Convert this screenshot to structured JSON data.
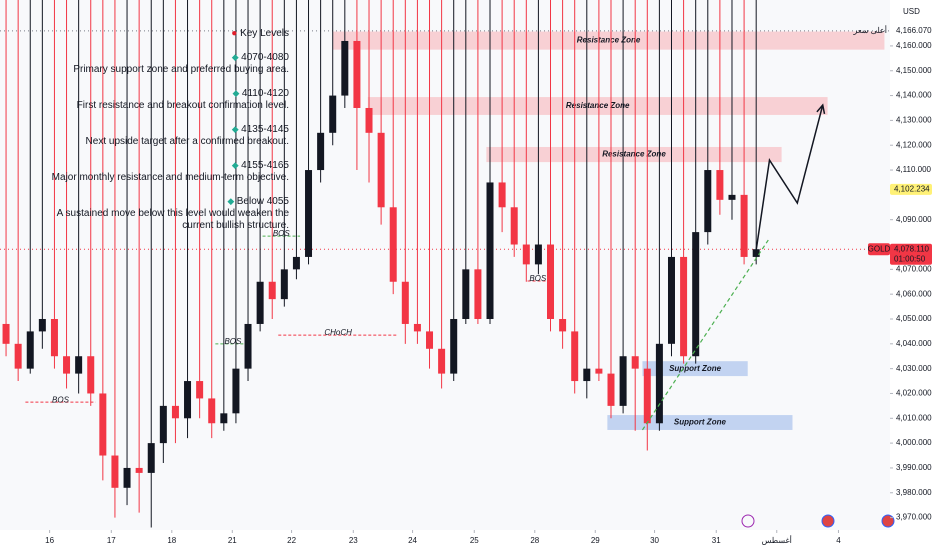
{
  "chart_data": {
    "type": "candlestick",
    "currency": "USD",
    "grid": false,
    "up_color": "#131722",
    "down_color": "#f23645",
    "xlim": [
      -0.5,
      73.06
    ],
    "ylim": [
      3965,
      4178.5
    ],
    "xticks": [
      {
        "value": 3.6,
        "label": "16"
      },
      {
        "value": 8.7,
        "label": "17"
      },
      {
        "value": 13.7,
        "label": "18"
      },
      {
        "value": 18.7,
        "label": "21"
      },
      {
        "value": 23.6,
        "label": "22"
      },
      {
        "value": 28.7,
        "label": "23"
      },
      {
        "value": 33.6,
        "label": "24"
      },
      {
        "value": 38.7,
        "label": "25"
      },
      {
        "value": 43.7,
        "label": "28"
      },
      {
        "value": 48.7,
        "label": "29"
      },
      {
        "value": 53.6,
        "label": "30"
      },
      {
        "value": 58.7,
        "label": "31"
      },
      {
        "value": 63.7,
        "label": "أغسطس"
      },
      {
        "value": 68.8,
        "label": "4"
      }
    ],
    "yticks": [
      {
        "value": 3970,
        "label": "3,970.000"
      },
      {
        "value": 3980,
        "label": "3,980.000"
      },
      {
        "value": 3990,
        "label": "3,990.000"
      },
      {
        "value": 4000,
        "label": "4,000.000"
      },
      {
        "value": 4010,
        "label": "4,010.000"
      },
      {
        "value": 4020,
        "label": "4,020.000"
      },
      {
        "value": 4030,
        "label": "4,030.000"
      },
      {
        "value": 4040,
        "label": "4,040.000"
      },
      {
        "value": 4050,
        "label": "4,050.000"
      },
      {
        "value": 4060,
        "label": "4,060.000"
      },
      {
        "value": 4070,
        "label": "4,070.000"
      },
      {
        "value": 4090,
        "label": "4,090.000"
      },
      {
        "value": 4110,
        "label": "4,110.000"
      },
      {
        "value": 4120,
        "label": "4,120.000"
      },
      {
        "value": 4130,
        "label": "4,130.000"
      },
      {
        "value": 4140,
        "label": "4,140.000"
      },
      {
        "value": 4150,
        "label": "4,150.000"
      },
      {
        "value": 4160,
        "label": "4,160.000"
      }
    ],
    "open": [
      4048,
      4040,
      4030,
      4045,
      4050,
      4035,
      4028,
      4035,
      4020,
      3995,
      3982,
      3990,
      3988,
      4000,
      4015,
      4010,
      4025,
      4018,
      4008,
      4012,
      4030,
      4048,
      4065,
      4058,
      4070,
      4075,
      4110,
      4125,
      4140,
      4162,
      4135,
      4125,
      4095,
      4065,
      4048,
      4045,
      4038,
      4028,
      4050,
      4070,
      4050,
      4105,
      4095,
      4080,
      4072,
      4080,
      4050,
      4045,
      4025,
      4030,
      4028,
      4015,
      4035,
      4030,
      4008,
      4040,
      4075,
      4035,
      4085,
      4110,
      4098,
      4100,
      4075
    ],
    "high": {
      "value": 4166.07,
      "label": "4,166.070"
    },
    "low": [
      4035,
      4025,
      4028,
      4038,
      4030,
      4022,
      4020,
      4015,
      3985,
      3970,
      3975,
      3972,
      3966,
      3992,
      4000,
      4002,
      4010,
      4002,
      4005,
      4008,
      4025,
      4045,
      4050,
      4055,
      4066,
      4072,
      4105,
      4120,
      4135,
      4110,
      4105,
      4088,
      4060,
      4040,
      4040,
      4030,
      4022,
      4025,
      4048,
      4048,
      4048,
      4085,
      4075,
      4065,
      4068,
      4045,
      4038,
      4020,
      4018,
      4025,
      4010,
      4012,
      4005,
      3997,
      4005,
      4035,
      4032,
      4032,
      4080,
      4092,
      4090,
      4072,
      4072
    ],
    "close": [
      4040,
      4030,
      4045,
      4050,
      4035,
      4028,
      4035,
      4020,
      3995,
      3982,
      3990,
      3988,
      4000,
      4015,
      4010,
      4025,
      4018,
      4008,
      4012,
      4030,
      4048,
      4065,
      4058,
      4070,
      4075,
      4110,
      4125,
      4140,
      4162,
      4135,
      4125,
      4095,
      4065,
      4048,
      4045,
      4038,
      4028,
      4050,
      4070,
      4050,
      4105,
      4095,
      4080,
      4072,
      4080,
      4050,
      4045,
      4025,
      4030,
      4028,
      4015,
      4035,
      4030,
      4008,
      4040,
      4075,
      4035,
      4085,
      4110,
      4098,
      4100,
      4075,
      4078.11
    ],
    "zones": [
      {
        "label": "Resistance Zone",
        "color": "#f8c9cd",
        "x": [
          27,
          72.6
        ],
        "y": [
          4158.5,
          4165.8
        ]
      },
      {
        "label": "Resistance Zone",
        "color": "#f8c9cd",
        "x": [
          29.9,
          67.9
        ],
        "y": [
          4132.2,
          4139.4
        ]
      },
      {
        "label": "Resistance Zone",
        "color": "#f8c9cd",
        "x": [
          39.7,
          64.1
        ],
        "y": [
          4113.2,
          4119.3
        ]
      },
      {
        "label": "Support Zone",
        "color": "#b9cdee",
        "x": [
          52.6,
          61.3
        ],
        "y": [
          4027,
          4033
        ]
      },
      {
        "label": "Support Zone",
        "color": "#b9cdee",
        "x": [
          49.7,
          65
        ],
        "y": [
          4005.3,
          4011.3
        ]
      }
    ],
    "structure": [
      {
        "label": "BOS",
        "color": "#f23645",
        "x": [
          1.6,
          7.4
        ],
        "price": 4016.5
      },
      {
        "label": "BOS",
        "color": "#4caf50",
        "x": [
          21.2,
          24.3
        ],
        "price": 4083.4
      },
      {
        "label": "BOS",
        "color": "#4caf50",
        "x": [
          17.3,
          20.2
        ],
        "price": 4040
      },
      {
        "label": "CHoCH",
        "color": "#f23645",
        "x": [
          22.5,
          32.4
        ],
        "price": 4043.5
      },
      {
        "label": "BOS",
        "color": "#f23645",
        "x": [
          43.1,
          44.8
        ],
        "price": 4065.3
      }
    ],
    "projection": {
      "x": [
        62,
        63.1,
        65.4,
        67.5
      ],
      "y": [
        4077.8,
        4114,
        4096.7,
        4136.2
      ]
    },
    "trendline": {
      "x": [
        52.6,
        63
      ],
      "y": [
        4005.3,
        4081.8
      ]
    },
    "high_label": "أعلى سعر",
    "marked_price": {
      "value": 4102.234,
      "label": "4,102.234"
    },
    "symbol": "GOLD",
    "last_price": {
      "value": 4078.11,
      "label": "4,078.110"
    },
    "countdown": "01:00:50",
    "key_levels": {
      "title": "Key Levels",
      "items": [
        {
          "level": "4070-4080",
          "text": "Primary support zone and preferred buying area."
        },
        {
          "level": "4110-4120",
          "text": "First resistance and breakout confirmation level."
        },
        {
          "level": "4135-4145",
          "text": "Next upside target after a confirmed breakout."
        },
        {
          "level": "4155-4165",
          "text": "Major monthly resistance and medium-term objective."
        },
        {
          "level": "Below 4055",
          "text": "A sustained move below this level would weaken the current bullish structure."
        }
      ]
    }
  }
}
